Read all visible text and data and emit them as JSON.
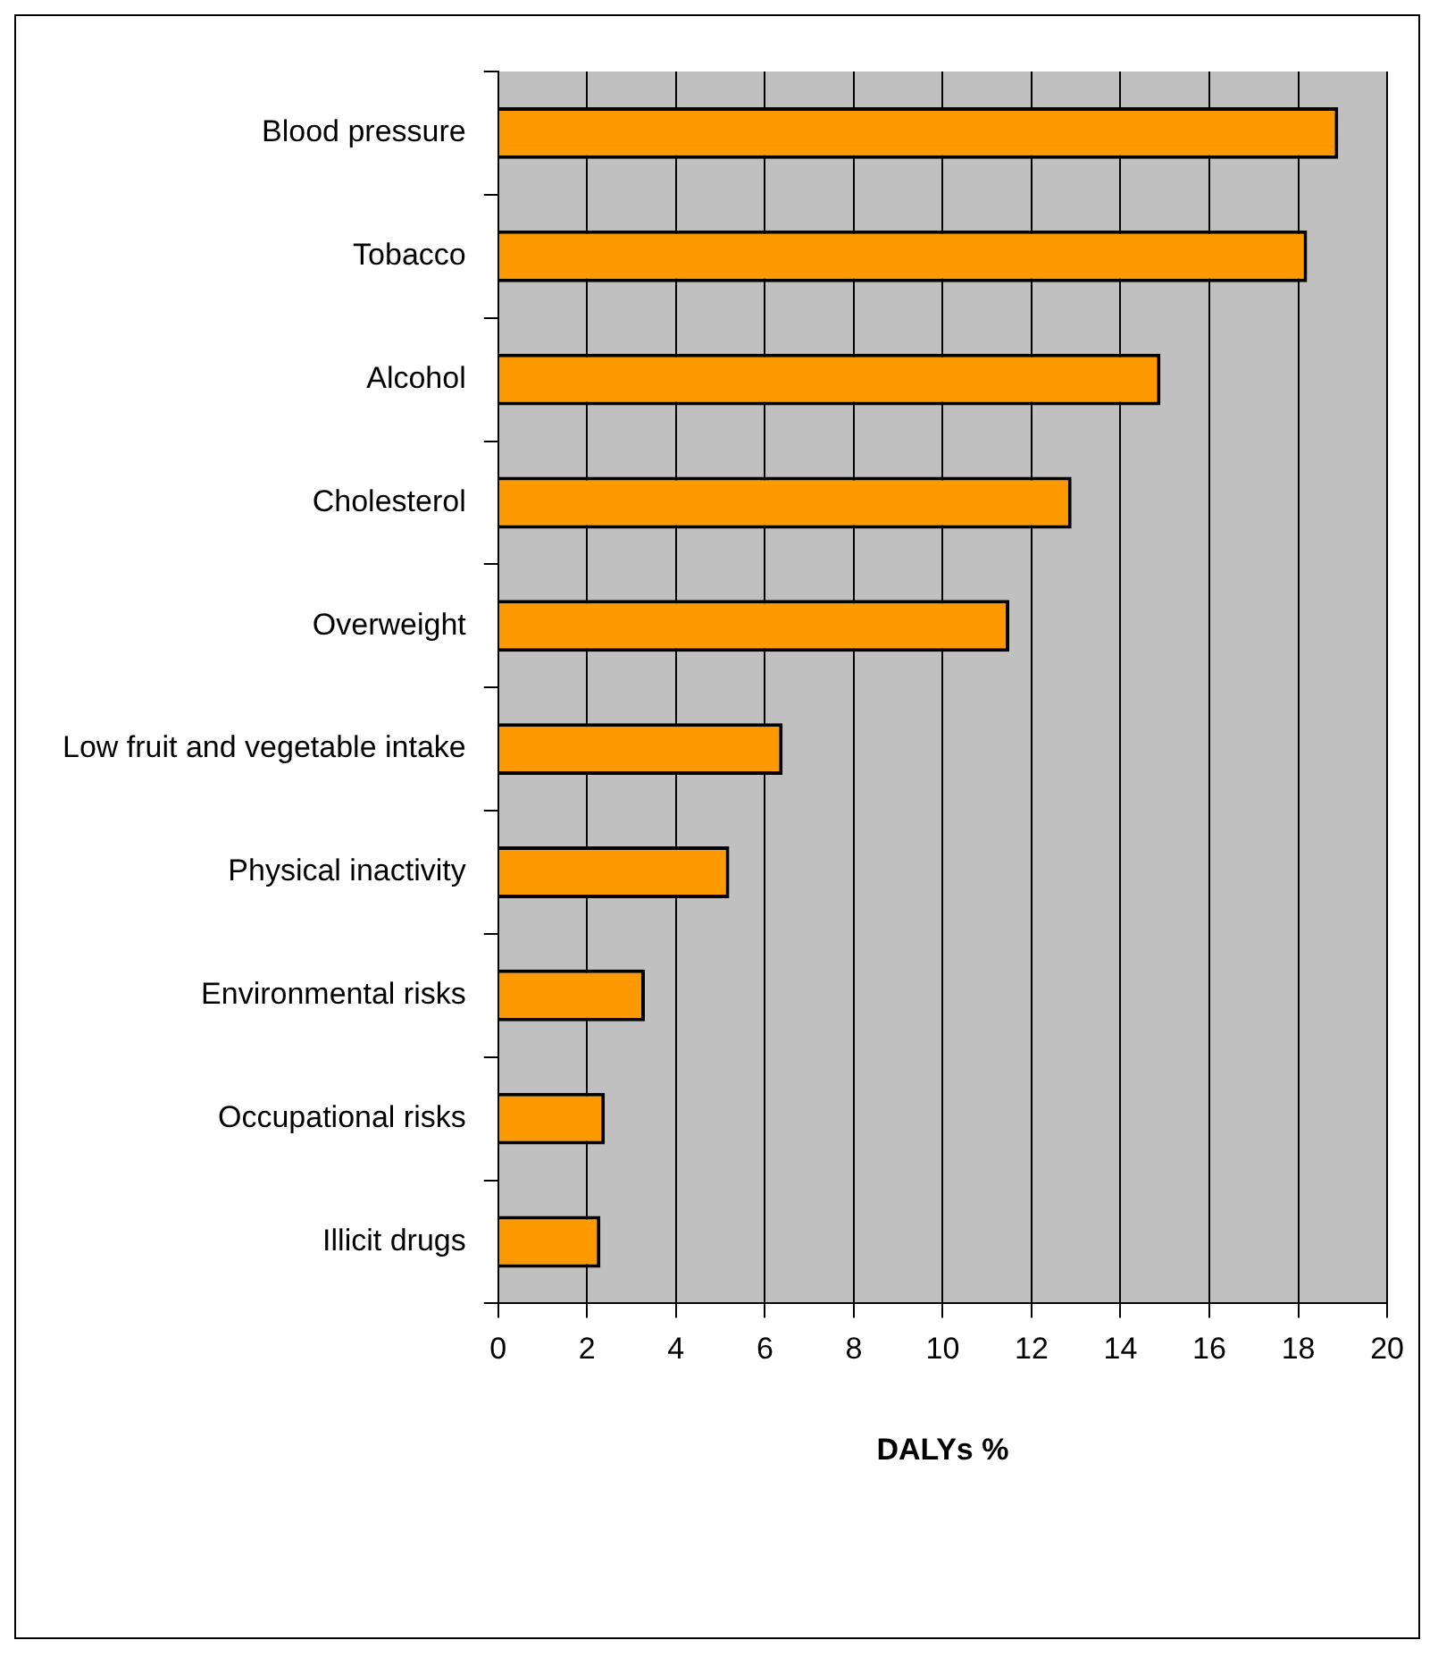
{
  "chart_data": {
    "type": "bar",
    "orientation": "horizontal",
    "xlabel": "DALYs %",
    "categories": [
      "Blood pressure",
      "Tobacco",
      "Alcohol",
      "Cholesterol",
      "Overweight",
      "Low fruit and vegetable intake",
      "Physical inactivity",
      "Environmental risks",
      "Occupational risks",
      "Illicit drugs"
    ],
    "values": [
      18.9,
      18.2,
      14.9,
      12.9,
      11.5,
      6.4,
      5.2,
      3.3,
      2.4,
      2.3
    ],
    "color": "#ff9900",
    "xlim": [
      0,
      20
    ],
    "xticks": [
      0,
      2,
      4,
      6,
      8,
      10,
      12,
      14,
      16,
      18,
      20
    ],
    "grid": "x"
  }
}
